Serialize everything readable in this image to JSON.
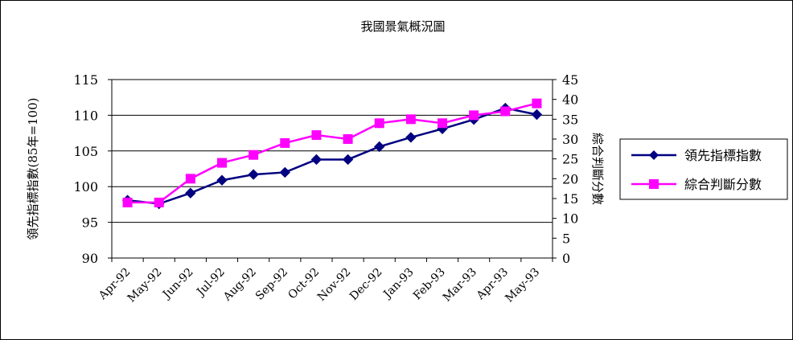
{
  "chart_data": {
    "type": "line",
    "title": "我國景氣概況圖",
    "categories": [
      "Apr-92",
      "May-92",
      "Jun-92",
      "Jul-92",
      "Aug-92",
      "Sep-92",
      "Oct-92",
      "Nov-92",
      "Dec-92",
      "Jan-93",
      "Feb-93",
      "Mar-93",
      "Apr-93",
      "May-93"
    ],
    "y_left": {
      "label": "領先指標指數(85年=100)",
      "range": [
        90,
        115
      ],
      "ticks": [
        90,
        95,
        100,
        105,
        110,
        115
      ]
    },
    "y_right": {
      "label": "綜合判斷分數",
      "range": [
        0,
        45
      ],
      "ticks": [
        0,
        5,
        10,
        15,
        20,
        25,
        30,
        35,
        40,
        45
      ]
    },
    "series": [
      {
        "name": "領先指標指數",
        "axis": "left",
        "color": "#000080",
        "marker": "diamond",
        "values": [
          98.1,
          97.6,
          99.1,
          100.9,
          101.7,
          102.0,
          103.8,
          103.8,
          105.6,
          106.9,
          108.1,
          109.4,
          111.0,
          110.1
        ]
      },
      {
        "name": "綜合判斷分數",
        "axis": "right",
        "color": "#ff00ff",
        "marker": "square",
        "values": [
          14,
          14,
          20,
          24,
          26,
          29,
          31,
          30,
          34,
          35,
          34,
          36,
          37,
          39
        ]
      }
    ],
    "grid": true,
    "legend_position": "right"
  }
}
